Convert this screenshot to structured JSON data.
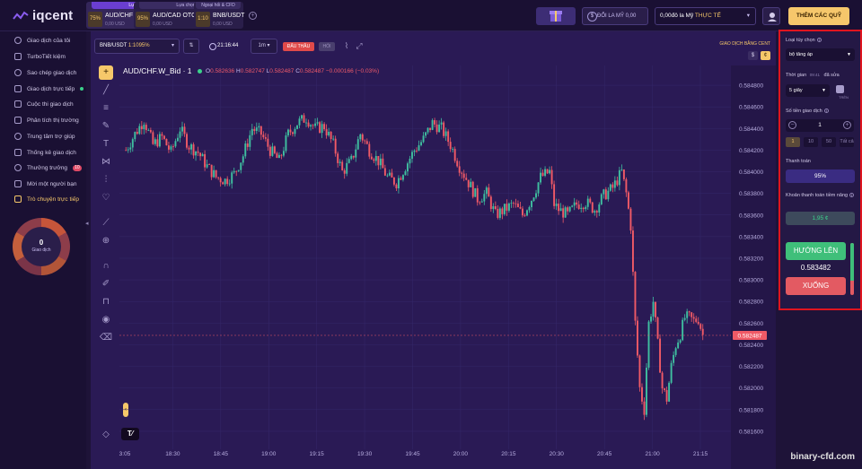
{
  "brand": {
    "name": "iqcent"
  },
  "asset_tabs": [
    {
      "kind": "Lựa chọn",
      "pct": "75%",
      "name": "AUD/CHF",
      "balance": "0,00 USD",
      "active": true
    },
    {
      "kind": "Lựa chọn",
      "pct": "95%",
      "name": "AUD/CAD OTC",
      "balance": "0,00 USD",
      "active": false
    },
    {
      "kind": "Ngoại hối & CFD",
      "pct": "1:10",
      "name": "BNB/USDT",
      "balance": "0,00 USD",
      "active": false
    }
  ],
  "header": {
    "convert_label": "ĐỔI LA MỸ 0,00",
    "account_amount": "0,00đô la Mỹ",
    "account_type": "THỰC TẾ",
    "deposit_label": "THÊM CÁC QUỸ"
  },
  "sidebar": {
    "items": [
      {
        "label": "Giao dịch của tôi"
      },
      {
        "label": "TurboTiết kiệm"
      },
      {
        "label": "Sao chép giao dịch"
      },
      {
        "label": "Giao dịch trực tiếp"
      },
      {
        "label": "Cuộc thi giao dịch"
      },
      {
        "label": "Phân tích thị trường"
      },
      {
        "label": "Trung tâm trợ giúp"
      },
      {
        "label": "Thống kê giao dịch"
      },
      {
        "label": "Thưởng trưởng",
        "badge": "10"
      },
      {
        "label": "Mời một người bạn"
      },
      {
        "label": "Trò chuyện trực tiếp",
        "active": true
      }
    ],
    "donut": {
      "count": "0",
      "label": "Giao dịch"
    }
  },
  "chart_toolbar": {
    "pair": "BNB/USDT",
    "leverage": "1:1095%",
    "time": "21:16:44",
    "timeframe": "1m",
    "tag_red": "ĐẤU THẦU",
    "tag_grey": "HỎI",
    "cent_label": "GIAO DỊCH BẰNG CENT",
    "cur_s": "$",
    "cur_c": "¢"
  },
  "legend": {
    "symbol": "AUD/CHF.W_Bid · 1",
    "o_label": "O",
    "o": "0.582636",
    "h_label": "H",
    "h": "0.582747",
    "l_label": "L",
    "l": "0.582487",
    "c_label": "C",
    "c": "0.582487",
    "change": "−0.000166 (−0.03%)"
  },
  "chart_data": {
    "type": "candlestick",
    "symbol": "AUD/CHF.W_Bid",
    "x_ticks": [
      "3:05",
      "18:30",
      "18:45",
      "19:00",
      "19:15",
      "19:30",
      "19:45",
      "20:00",
      "20:15",
      "20:30",
      "20:45",
      "21:00",
      "21:15"
    ],
    "y_ticks": [
      "0.584800",
      "0.584600",
      "0.584400",
      "0.584200",
      "0.584000",
      "0.583800",
      "0.583600",
      "0.583400",
      "0.583200",
      "0.583000",
      "0.582800",
      "0.582600",
      "0.582400",
      "0.582200",
      "0.582000",
      "0.581800",
      "0.581600"
    ],
    "ylim": [
      0.5815,
      0.5849
    ],
    "last_price": "0.582487",
    "path_points": [
      [
        0,
        0.5842
      ],
      [
        4,
        0.58435
      ],
      [
        8,
        0.58448
      ],
      [
        12,
        0.58425
      ],
      [
        16,
        0.58432
      ],
      [
        20,
        0.58418
      ],
      [
        24,
        0.5844
      ],
      [
        28,
        0.58424
      ],
      [
        32,
        0.58418
      ],
      [
        36,
        0.58405
      ],
      [
        40,
        0.58395
      ],
      [
        44,
        0.58392
      ],
      [
        48,
        0.58398
      ],
      [
        52,
        0.58415
      ],
      [
        56,
        0.5844
      ],
      [
        60,
        0.58435
      ],
      [
        64,
        0.5842
      ],
      [
        68,
        0.5841
      ],
      [
        72,
        0.58435
      ],
      [
        76,
        0.58445
      ],
      [
        80,
        0.5845
      ],
      [
        84,
        0.5844
      ],
      [
        88,
        0.58442
      ],
      [
        92,
        0.58425
      ],
      [
        96,
        0.584
      ],
      [
        100,
        0.5841
      ],
      [
        104,
        0.58435
      ],
      [
        108,
        0.5842
      ],
      [
        112,
        0.5841
      ],
      [
        116,
        0.58395
      ],
      [
        120,
        0.5839
      ],
      [
        124,
        0.58405
      ],
      [
        128,
        0.5842
      ],
      [
        132,
        0.5843
      ],
      [
        136,
        0.58445
      ],
      [
        140,
        0.5844
      ],
      [
        144,
        0.58425
      ],
      [
        148,
        0.58405
      ],
      [
        152,
        0.5839
      ],
      [
        156,
        0.58375
      ],
      [
        160,
        0.5838
      ],
      [
        164,
        0.5836
      ],
      [
        168,
        0.58365
      ],
      [
        172,
        0.5837
      ],
      [
        176,
        0.5836
      ],
      [
        180,
        0.58375
      ],
      [
        184,
        0.58395
      ],
      [
        188,
        0.584
      ],
      [
        190,
        0.5837
      ],
      [
        192,
        0.58365
      ],
      [
        196,
        0.5836
      ],
      [
        200,
        0.5837
      ],
      [
        204,
        0.58372
      ],
      [
        208,
        0.58365
      ],
      [
        212,
        0.58378
      ],
      [
        216,
        0.58385
      ],
      [
        220,
        0.584
      ],
      [
        222,
        0.5838
      ],
      [
        224,
        0.5835
      ],
      [
        226,
        0.5826
      ],
      [
        228,
        0.582
      ],
      [
        230,
        0.5818
      ],
      [
        232,
        0.5826
      ],
      [
        234,
        0.5828
      ],
      [
        236,
        0.5824
      ],
      [
        238,
        0.582
      ],
      [
        240,
        0.5819
      ],
      [
        242,
        0.5822
      ],
      [
        244,
        0.5824
      ],
      [
        246,
        0.5825
      ],
      [
        248,
        0.58265
      ],
      [
        250,
        0.58265
      ],
      [
        252,
        0.58262
      ],
      [
        254,
        0.58264
      ],
      [
        256,
        0.58249
      ]
    ]
  },
  "trade_panel": {
    "option_type_label": "Loại tùy chọn",
    "option_type_value": "bộ tăng áp",
    "time_label": "Thời gian",
    "time_now": "09:41",
    "time_edit": "đã sửa",
    "time_value": "5 giây",
    "toggle_label": "TRÊN",
    "amount_label": "Số tiền giao dịch",
    "amount_value": "1",
    "chips": [
      "1",
      "10",
      "50",
      "Tất cả"
    ],
    "payout_label": "Thanh toán",
    "payout_value": "95%",
    "profit_label": "Khoản thanh toán tiềm năng",
    "profit_value": "1,95 ¢",
    "up_label": "HƯỚNG LÊN",
    "current_price": "0.583482",
    "down_label": "XUỐNG",
    "sentiment_up_fraction": 0.72
  },
  "watermark": "binary-cfd.com"
}
